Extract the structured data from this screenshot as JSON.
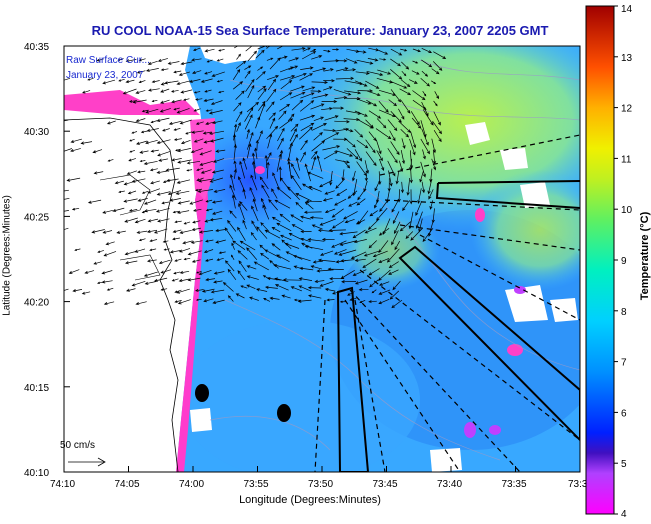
{
  "title": "RU COOL  NOAA-15  Sea Surface Temperature:  January 23, 2007 2205 GMT",
  "overlay_label_1": "Raw Surface Cur...",
  "overlay_label_2": "January 23, 2007",
  "x_axis_label": "Longitude (Degrees:Minutes)",
  "y_axis_label": "Latitude (Degrees:Minutes)",
  "x_ticks": [
    "74:10",
    "74:05",
    "74:00",
    "73:55",
    "73:50",
    "73:45",
    "73:40",
    "73:35",
    "73:3"
  ],
  "y_ticks": [
    "40:35",
    "40:30",
    "40:25",
    "40:20",
    "40:15",
    "40:10"
  ],
  "scale_label": "50 cm/s",
  "colorbar": {
    "label": "Temperature (°C)",
    "ticks": [
      "14",
      "13",
      "12",
      "11",
      "10",
      "9",
      "8",
      "7",
      "6",
      "5",
      "4"
    ],
    "min": 4,
    "max": 14
  },
  "colors": {
    "title": "#1a1ab0",
    "land": "#ffffff",
    "warm": "#a0e060",
    "cold": "#ff40c0",
    "ocean": "#2fa0ff"
  }
}
